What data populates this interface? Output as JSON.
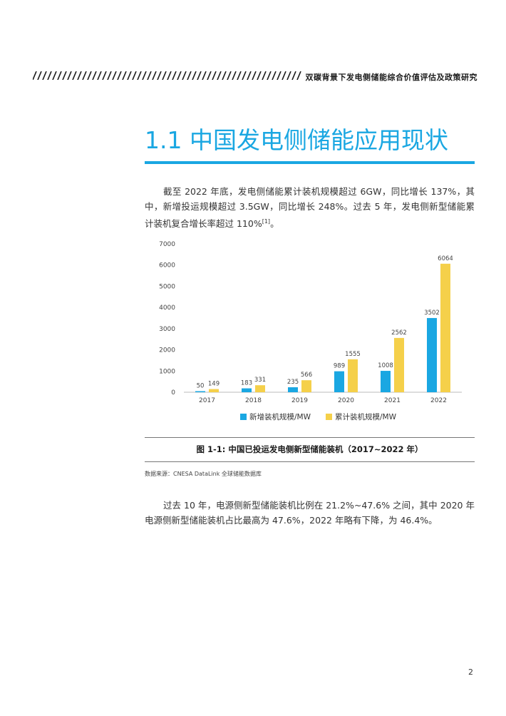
{
  "header": {
    "title": "双碳背景下发电侧储能综合价值评估及政策研究"
  },
  "section": {
    "title": "1.1  中国发电侧储能应用现状"
  },
  "para1": {
    "text": "截至 2022 年底，发电侧储能累计装机规模超过 6GW，同比增长 137%，其中，新增投运规模超过 3.5GW，同比增长 248%。过去 5 年，发电侧新型储能累计装机复合增长率超过 110%",
    "ref": "[1]",
    "end": "。"
  },
  "para2": {
    "text": "过去 10 年，电源侧新型储能装机比例在 21.2%~47.6% 之间，其中 2020 年电源侧新型储能装机占比最高为 47.6%，2022 年略有下降，为 46.4%。"
  },
  "chart_data": {
    "type": "bar",
    "categories": [
      "2017",
      "2018",
      "2019",
      "2020",
      "2021",
      "2022"
    ],
    "series": [
      {
        "name": "新增装机规模/MW",
        "values": [
          50,
          183,
          235,
          989,
          1008,
          3502
        ],
        "color": "#1aa7e2"
      },
      {
        "name": "累计装机规模/MW",
        "values": [
          149,
          331,
          566,
          1555,
          2562,
          6064
        ],
        "color": "#f5d04a"
      }
    ],
    "yticks": [
      "0",
      "1000",
      "2000",
      "3000",
      "4000",
      "5000",
      "6000",
      "7000"
    ],
    "ylim": [
      0,
      7000
    ],
    "legend_position": "bottom",
    "grid": false
  },
  "caption": "图 1-1: 中国已投运发电侧新型储能装机（2017~2022 年）",
  "source": "数据来源：CNESA DataLink 全球储能数据库",
  "page_number": "2"
}
